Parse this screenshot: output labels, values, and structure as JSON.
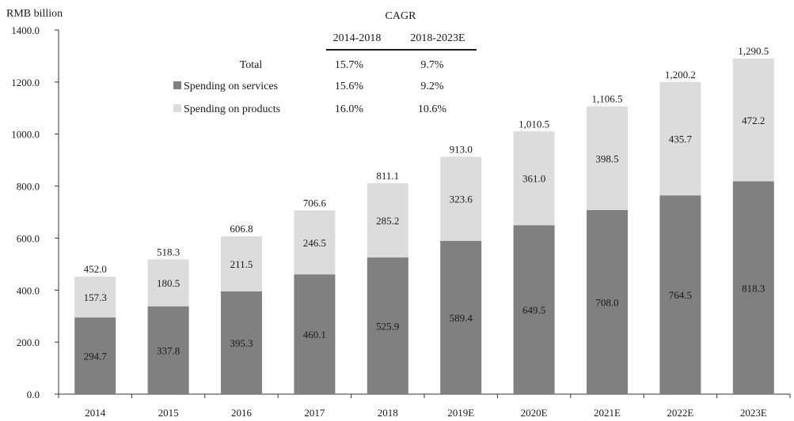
{
  "chart_data": {
    "type": "bar",
    "stacked": true,
    "ylabel": "RMB billion",
    "ylim": [
      0,
      1400
    ],
    "yticks": [
      "0.0",
      "200.0",
      "400.0",
      "600.0",
      "800.0",
      "1000.0",
      "1200.0",
      "1400.0"
    ],
    "categories": [
      "2014",
      "2015",
      "2016",
      "2017",
      "2018",
      "2019E",
      "2020E",
      "2021E",
      "2022E",
      "2023E"
    ],
    "series": [
      {
        "name": "Spending on services",
        "color": "#808080",
        "values": [
          294.7,
          337.8,
          395.3,
          460.1,
          525.9,
          589.4,
          649.5,
          708.0,
          764.5,
          818.3
        ],
        "labels": [
          "294.7",
          "337.8",
          "395.3",
          "460.1",
          "525.9",
          "589.4",
          "649.5",
          "708.0",
          "764.5",
          "818.3"
        ]
      },
      {
        "name": "Spending on products",
        "color": "#dcdcdc",
        "values": [
          157.3,
          180.5,
          211.5,
          246.5,
          285.2,
          323.6,
          361.0,
          398.5,
          435.7,
          472.2
        ],
        "labels": [
          "157.3",
          "180.5",
          "211.5",
          "246.5",
          "285.2",
          "323.6",
          "361.0",
          "398.5",
          "435.7",
          "472.2"
        ]
      }
    ],
    "totals": [
      452.0,
      518.3,
      606.8,
      706.6,
      811.1,
      913.0,
      1010.5,
      1106.5,
      1200.2,
      1290.5
    ],
    "total_labels": [
      "452.0",
      "518.3",
      "606.8",
      "706.6",
      "811.1",
      "913.0",
      "1,010.5",
      "1,106.5",
      "1,200.2",
      "1,290.5"
    ],
    "cagr_table": {
      "title": "CAGR",
      "columns": [
        "2014-2018",
        "2018-2023E"
      ],
      "rows": [
        {
          "label": "Total",
          "values": [
            "15.7%",
            "9.7%"
          ]
        },
        {
          "label": "Spending on services",
          "values": [
            "15.6%",
            "9.2%"
          ]
        },
        {
          "label": "Spending on products",
          "values": [
            "16.0%",
            "10.6%"
          ]
        }
      ]
    },
    "legend": "top-left",
    "grid": false
  }
}
